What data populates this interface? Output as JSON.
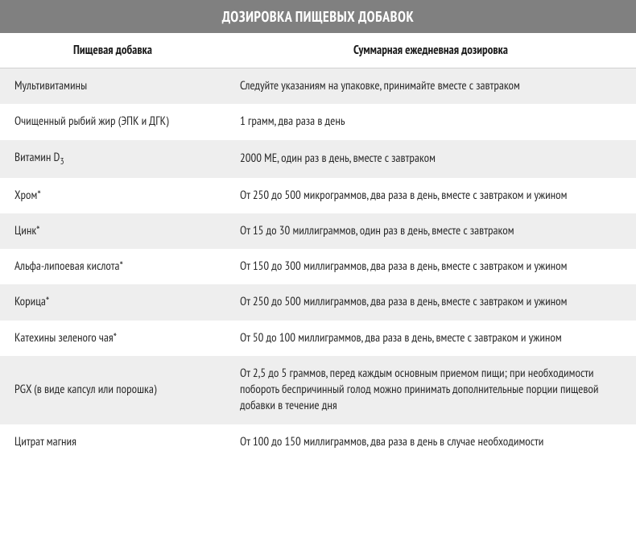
{
  "table": {
    "title": "ДОЗИРОВКА ПИЩЕВЫХ ДОБАВОК",
    "columns": {
      "supplement": "Пищевая добавка",
      "dosage": "Суммарная ежедневная дозировка"
    },
    "title_bg": "#808080",
    "title_color": "#ffffff",
    "stripe_odd_bg": "#eeeeee",
    "stripe_even_bg": "#ffffff",
    "text_color": "#2a2a2a",
    "col_supplement_width": 280,
    "font_size_body": 15,
    "font_size_title": 18,
    "rows": [
      {
        "supplement": "Мультивитамины",
        "dosage": "Следуйте указаниям на упаковке, принимайте вместе с завтраком"
      },
      {
        "supplement": "Очищенный рыбий жир (ЭПК и ДГК)",
        "dosage": "1 грамм, два раза в день"
      },
      {
        "supplement": "Витамин D",
        "supplement_sub": "3",
        "dosage": "2000 МЕ, один раз в день, вместе с завтраком"
      },
      {
        "supplement": "Хром*",
        "dosage": "От 250 до 500 микрограммов, два раза в день, вместе с завтраком и ужином"
      },
      {
        "supplement": "Цинк*",
        "dosage": "От 15 до 30 миллиграммов, один раз в день, вместе с завтраком"
      },
      {
        "supplement": "Альфа-липоевая кислота*",
        "dosage": "От 150 до 300 миллиграммов, два раза в день, вместе с завтраком и ужином"
      },
      {
        "supplement": "Корица*",
        "dosage": "От 250 до 500 миллиграммов, два раза в день, вместе с завтраком и ужином"
      },
      {
        "supplement": "Катехины зеленого чая*",
        "dosage": "От 50 до 100 миллиграммов, два раза в день, вместе с завтраком и ужином"
      },
      {
        "supplement": "PGX (в виде капсул или порошка)",
        "dosage": "От 2,5 до 5 граммов, перед каждым основным приемом пищи; при необходимости побороть беспричинный голод можно принимать дополнительные порции пищевой добавки в течение дня"
      },
      {
        "supplement": "Цитрат магния",
        "dosage": "От 100 до 150 миллиграммов, два раза в день в случае необходимости"
      }
    ]
  }
}
